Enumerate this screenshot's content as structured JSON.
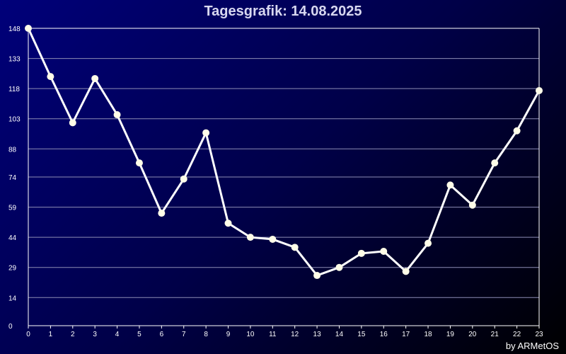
{
  "title": "Tagesgrafik: 14.08.2025",
  "footer": "by ARMetOS",
  "colors": {
    "line": "#ffffff",
    "marker": "#fffde8",
    "grid": "#8c8cb4",
    "axis": "#ffffff"
  },
  "chart_data": {
    "type": "line",
    "title": "Tagesgrafik: 14.08.2025",
    "x": [
      0,
      1,
      2,
      3,
      4,
      5,
      6,
      7,
      8,
      9,
      10,
      11,
      12,
      13,
      14,
      15,
      16,
      17,
      18,
      19,
      20,
      21,
      22,
      23
    ],
    "y_ticks": [
      0,
      14,
      29,
      44,
      59,
      74,
      88,
      103,
      118,
      133,
      148
    ],
    "series": [
      {
        "values": [
          148,
          124,
          101,
          123,
          105,
          81,
          56,
          73,
          96,
          51,
          44,
          43,
          39,
          25,
          29,
          36,
          37,
          27,
          41,
          70,
          60,
          81,
          97,
          117
        ]
      }
    ],
    "ylim": [
      0,
      148
    ],
    "grid": true
  }
}
